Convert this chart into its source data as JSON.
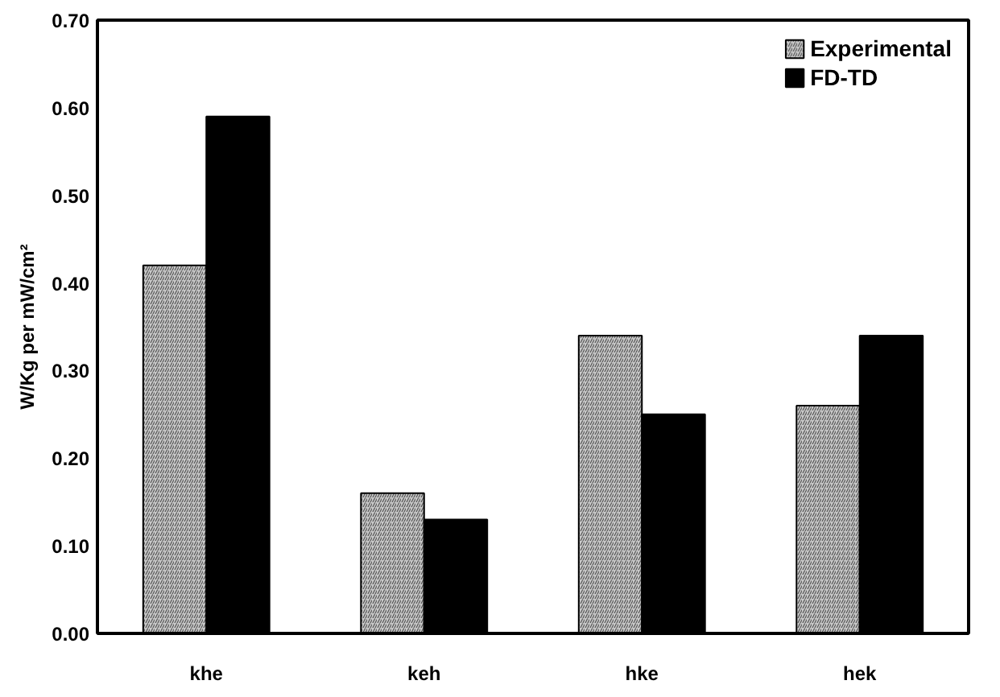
{
  "chart_data": {
    "type": "bar",
    "ylabel": "W/Kg per mW/cm²",
    "categories": [
      "khe",
      "keh",
      "hke",
      "hek"
    ],
    "series": [
      {
        "name": "Experimental",
        "color": "#c8c8c8",
        "values": [
          0.42,
          0.16,
          0.34,
          0.26
        ]
      },
      {
        "name": "FD-TD",
        "color": "#000000",
        "values": [
          0.59,
          0.13,
          0.25,
          0.34
        ]
      }
    ],
    "ylim": [
      0,
      0.7
    ],
    "yticks": [
      {
        "value": 0,
        "label": "0.00"
      },
      {
        "value": 0.1,
        "label": "0.10"
      },
      {
        "value": 0.2,
        "label": "0.20"
      },
      {
        "value": 0.3,
        "label": "0.30"
      },
      {
        "value": 0.4,
        "label": "0.40"
      },
      {
        "value": 0.5,
        "label": "0.50"
      },
      {
        "value": 0.6,
        "label": "0.60"
      },
      {
        "value": 0.7,
        "label": "0.70"
      }
    ],
    "grid": false,
    "legend": "top right"
  }
}
